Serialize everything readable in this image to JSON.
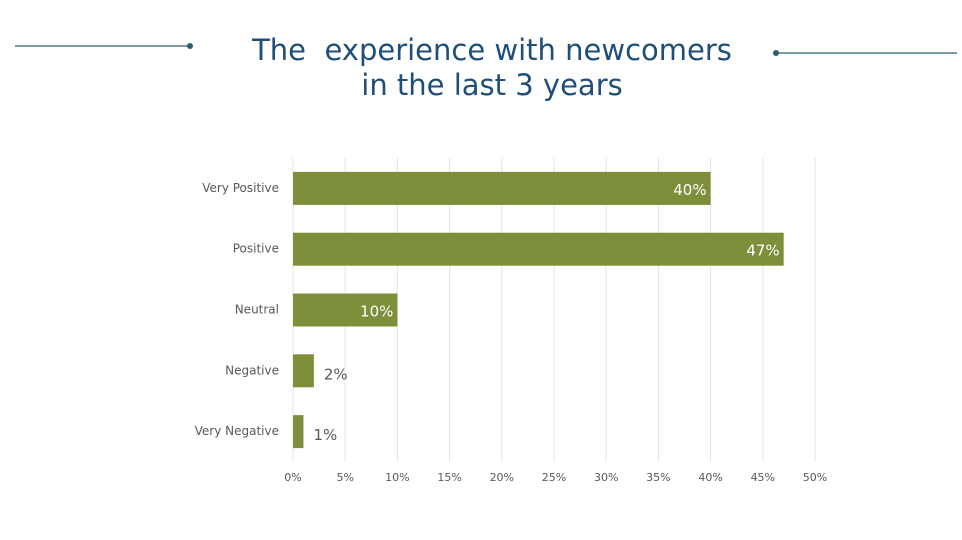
{
  "chart_data": {
    "type": "bar",
    "orientation": "horizontal",
    "title": [
      "The  experience with newcomers",
      "in the last 3 years"
    ],
    "categories": [
      "Very Positive",
      "Positive",
      "Neutral",
      "Negative",
      "Very Negative"
    ],
    "values": [
      40,
      47,
      10,
      2,
      1
    ],
    "value_labels": [
      "40%",
      "47%",
      "10%",
      "2%",
      "1%"
    ],
    "color": "#7d8f3a",
    "xlim": [
      0,
      50
    ],
    "xticks": [
      {
        "value": 0,
        "label": "0%"
      },
      {
        "value": 5,
        "label": "5%"
      },
      {
        "value": 10,
        "label": "10%"
      },
      {
        "value": 15,
        "label": "15%"
      },
      {
        "value": 20,
        "label": "20%"
      },
      {
        "value": 25,
        "label": "25%"
      },
      {
        "value": 30,
        "label": "30%"
      },
      {
        "value": 35,
        "label": "35%"
      },
      {
        "value": 40,
        "label": "40%"
      },
      {
        "value": 45,
        "label": "45%"
      },
      {
        "value": 50,
        "label": "50%"
      }
    ],
    "grid": true
  }
}
